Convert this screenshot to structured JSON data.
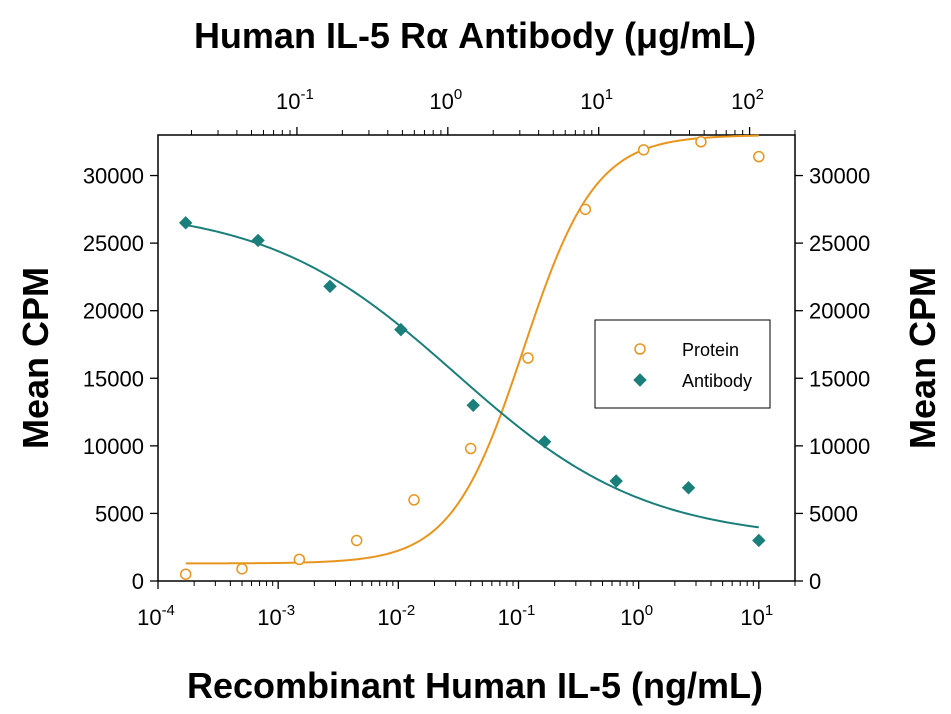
{
  "chart_data": {
    "type": "scatter",
    "top_title": "Human IL-5 Rα Antibody (μg/mL)",
    "xlabel": "Recombinant Human IL-5 (ng/mL)",
    "ylabel_left": "Mean CPM",
    "ylabel_right": "Mean CPM",
    "x_scale": "log",
    "top_x_scale": "log",
    "xlim": [
      0.0001,
      20
    ],
    "top_xlim": [
      0.012,
      200
    ],
    "ylim": [
      0,
      33000
    ],
    "x_ticks": [
      {
        "value": 0.0001,
        "base": "10",
        "exp": "-4"
      },
      {
        "value": 0.001,
        "base": "10",
        "exp": "-3"
      },
      {
        "value": 0.01,
        "base": "10",
        "exp": "-2"
      },
      {
        "value": 0.1,
        "base": "10",
        "exp": "-1"
      },
      {
        "value": 1,
        "base": "10",
        "exp": "0"
      },
      {
        "value": 10,
        "base": "10",
        "exp": "1"
      }
    ],
    "top_x_ticks": [
      {
        "value": 0.1,
        "base": "10",
        "exp": "-1"
      },
      {
        "value": 1,
        "base": "10",
        "exp": "0"
      },
      {
        "value": 10,
        "base": "10",
        "exp": "1"
      },
      {
        "value": 100,
        "base": "10",
        "exp": "2"
      }
    ],
    "y_ticks": [
      "0",
      "5000",
      "10000",
      "15000",
      "20000",
      "25000",
      "30000"
    ],
    "legend_position": "right-center",
    "grid": false,
    "series": [
      {
        "name": "Protein",
        "marker": "circle-open",
        "color": "#E8951E",
        "x": [
          0.00017,
          0.0005,
          0.0015,
          0.0045,
          0.0135,
          0.04,
          0.12,
          0.36,
          1.1,
          3.3,
          10
        ],
        "y": [
          500,
          900,
          1600,
          3000,
          6000,
          9800,
          16500,
          27500,
          31900,
          32500,
          31400
        ]
      },
      {
        "name": "Antibody",
        "marker": "diamond-filled",
        "color": "#1A7F7A",
        "x": [
          0.00017,
          0.00068,
          0.0027,
          0.0105,
          0.042,
          0.165,
          0.65,
          2.6,
          10
        ],
        "y": [
          26500,
          25200,
          21800,
          18600,
          13000,
          10300,
          7400,
          6900,
          3000
        ]
      }
    ],
    "fit_curves": [
      {
        "name": "Protein",
        "bottom": 1300,
        "top": 33000,
        "ec50": 0.11,
        "hill": 1.45,
        "x_range": [
          0.00017,
          10
        ]
      },
      {
        "name": "Antibody",
        "bottom": 3000,
        "top": 27700,
        "ec50": 0.03,
        "hill": -0.55,
        "x_range": [
          0.00017,
          10
        ]
      }
    ]
  }
}
